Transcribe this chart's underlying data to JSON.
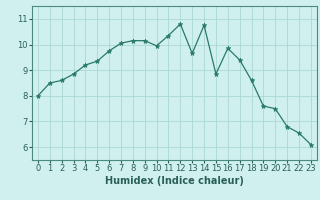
{
  "title": "",
  "xlabel": "Humidex (Indice chaleur)",
  "x": [
    0,
    1,
    2,
    3,
    4,
    5,
    6,
    7,
    8,
    9,
    10,
    11,
    12,
    13,
    14,
    15,
    16,
    17,
    18,
    19,
    20,
    21,
    22,
    23
  ],
  "y": [
    8.0,
    8.5,
    8.6,
    8.85,
    9.2,
    9.35,
    9.75,
    10.05,
    10.15,
    10.15,
    9.95,
    10.35,
    10.8,
    9.65,
    10.75,
    8.85,
    9.85,
    9.4,
    8.6,
    7.6,
    7.5,
    6.8,
    6.55,
    6.1
  ],
  "line_color": "#2a7a6a",
  "marker": "*",
  "marker_color": "#2a7a6a",
  "bg_color": "#cff0ee",
  "grid_color": "#aad8d4",
  "spine_color": "#4a8a80",
  "ylim": [
    5.5,
    11.5
  ],
  "xlim": [
    -0.5,
    23.5
  ],
  "yticks": [
    6,
    7,
    8,
    9,
    10,
    11
  ],
  "xticks": [
    0,
    1,
    2,
    3,
    4,
    5,
    6,
    7,
    8,
    9,
    10,
    11,
    12,
    13,
    14,
    15,
    16,
    17,
    18,
    19,
    20,
    21,
    22,
    23
  ],
  "xlabel_fontsize": 7,
  "tick_fontsize": 6,
  "tick_color": "#2a5f58",
  "linewidth": 0.9,
  "markersize": 3.5
}
